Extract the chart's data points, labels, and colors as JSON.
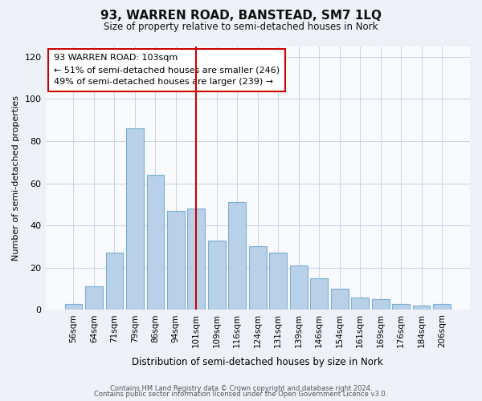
{
  "title": "93, WARREN ROAD, BANSTEAD, SM7 1LQ",
  "subtitle": "Size of property relative to semi-detached houses in Nork",
  "xlabel": "Distribution of semi-detached houses by size in Nork",
  "ylabel": "Number of semi-detached properties",
  "bar_labels": [
    "56sqm",
    "64sqm",
    "71sqm",
    "79sqm",
    "86sqm",
    "94sqm",
    "101sqm",
    "109sqm",
    "116sqm",
    "124sqm",
    "131sqm",
    "139sqm",
    "146sqm",
    "154sqm",
    "161sqm",
    "169sqm",
    "176sqm",
    "184sqm",
    "206sqm"
  ],
  "bar_values": [
    3,
    11,
    27,
    86,
    64,
    47,
    48,
    33,
    51,
    30,
    27,
    21,
    15,
    10,
    6,
    5,
    3,
    2,
    3
  ],
  "bar_color": "#b8d0e8",
  "bar_edge_color": "#7aafd4",
  "vline_index": 6,
  "vline_color": "#cc0000",
  "annotation_title": "93 WARREN ROAD: 103sqm",
  "annotation_line1": "← 51% of semi-detached houses are smaller (246)",
  "annotation_line2": "49% of semi-detached houses are larger (239) →",
  "annotation_box_color": "#ffffff",
  "annotation_box_edge": "#cc0000",
  "ylim": [
    0,
    125
  ],
  "yticks": [
    0,
    20,
    40,
    60,
    80,
    100,
    120
  ],
  "footer1": "Contains HM Land Registry data © Crown copyright and database right 2024.",
  "footer2": "Contains public sector information licensed under the Open Government Licence v3.0.",
  "bg_color": "#eef2f8",
  "plot_bg_color": "#f8fafd"
}
